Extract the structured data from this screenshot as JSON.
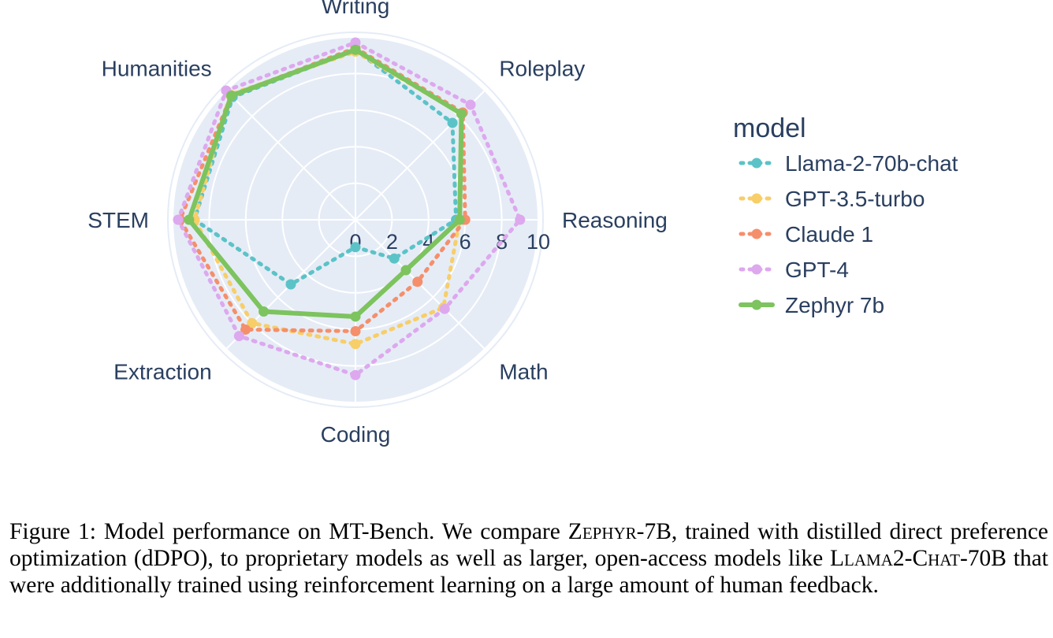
{
  "chart_data": {
    "type": "radar",
    "categories": [
      "Writing",
      "Roleplay",
      "Reasoning",
      "Math",
      "Coding",
      "Extraction",
      "STEM",
      "Humanities"
    ],
    "radial_range": [
      0,
      10
    ],
    "radial_ticks": [
      "0",
      "2",
      "4",
      "6",
      "8",
      "10"
    ],
    "legend_title": "model",
    "legend_position": "right",
    "grid": true,
    "series": [
      {
        "name": "Llama-2-70b-chat",
        "color": "#5bc3c7",
        "line_style": "dotted",
        "values": [
          9.3,
          7.5,
          5.5,
          3.0,
          1.5,
          5.0,
          8.8,
          9.5
        ]
      },
      {
        "name": "GPT-3.5-turbo",
        "color": "#f7ce68",
        "line_style": "dotted",
        "values": [
          9.2,
          8.2,
          5.7,
          6.8,
          6.8,
          8.0,
          8.8,
          9.7
        ]
      },
      {
        "name": "Claude 1",
        "color": "#f58f6b",
        "line_style": "dotted",
        "values": [
          9.4,
          8.3,
          6.0,
          4.8,
          6.1,
          8.5,
          9.6,
          9.6
        ]
      },
      {
        "name": "GPT-4",
        "color": "#dda8ee",
        "line_style": "dotted",
        "values": [
          9.7,
          8.9,
          9.0,
          6.9,
          8.5,
          9.0,
          9.7,
          10.0
        ]
      },
      {
        "name": "Zephyr 7b",
        "color": "#7dc35e",
        "line_style": "solid",
        "values": [
          9.3,
          8.2,
          5.7,
          3.9,
          5.3,
          7.1,
          9.1,
          9.6
        ]
      }
    ]
  },
  "caption": {
    "label": "Figure 1:",
    "text_1": " Model performance on MT-Bench. We compare ",
    "model_name_1": "Zephyr-7B",
    "text_2": ", trained with distilled direct preference optimization (dDPO), to proprietary models as well as larger, open-access models like ",
    "model_name_2": "Llama2-Chat-70B",
    "text_3": " that were additionally trained using reinforcement learning on a large amount of human feedback."
  }
}
